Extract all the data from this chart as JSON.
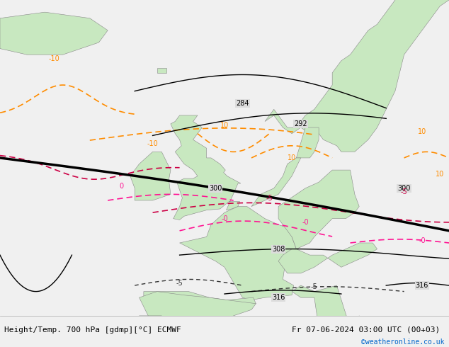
{
  "title_left": "Height/Temp. 700 hPa [gdmp][°C] ECMWF",
  "title_right": "Fr 07-06-2024 03:00 UTC (00+03)",
  "credit": "©weatheronline.co.uk",
  "bg_color": "#e8e8e8",
  "land_color": "#c8e8c0",
  "sea_color": "#dcdcdc",
  "fig_width": 6.34,
  "fig_height": 4.9,
  "dpi": 100,
  "bottom_bar_color": "#f0f0f0",
  "bottom_bar_height": 0.08
}
